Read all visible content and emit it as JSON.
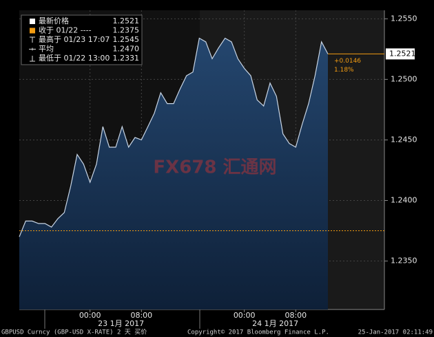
{
  "chart_data": {
    "type": "area",
    "series": [
      {
        "name": "GBPUSD",
        "color": "#c9d6e6",
        "x": [
          "01/22 13:00",
          "01/22 14:00",
          "01/22 15:00",
          "01/22 16:00",
          "01/22 17:00",
          "01/22 18:00",
          "01/22 19:00",
          "01/22 20:00",
          "01/22 21:00",
          "01/22 22:00",
          "01/22 23:00",
          "01/23 00:00",
          "01/23 01:00",
          "01/23 02:00",
          "01/23 03:00",
          "01/23 04:00",
          "01/23 05:00",
          "01/23 06:00",
          "01/23 07:00",
          "01/23 08:00",
          "01/23 09:00",
          "01/23 10:00",
          "01/23 11:00",
          "01/23 12:00",
          "01/23 13:00",
          "01/23 14:00",
          "01/23 15:00",
          "01/23 16:00",
          "01/23 17:00",
          "01/23 18:00",
          "01/23 19:00",
          "01/23 20:00",
          "01/23 21:00",
          "01/23 22:00",
          "01/23 23:00",
          "01/24 00:00",
          "01/24 01:00",
          "01/24 02:00",
          "01/24 03:00",
          "01/24 04:00",
          "01/24 05:00",
          "01/24 06:00",
          "01/24 07:00",
          "01/24 08:00",
          "01/24 09:00",
          "01/24 10:00",
          "01/24 11:00",
          "01/24 12:00",
          "01/24 13:00"
        ],
        "values": [
          1.237,
          1.2383,
          1.2383,
          1.2381,
          1.2381,
          1.2378,
          1.2385,
          1.239,
          1.2412,
          1.2438,
          1.243,
          1.2415,
          1.243,
          1.2461,
          1.2444,
          1.2444,
          1.2461,
          1.2444,
          1.2452,
          1.245,
          1.2461,
          1.2472,
          1.2489,
          1.248,
          1.248,
          1.2492,
          1.2503,
          1.2506,
          1.2534,
          1.2531,
          1.2517,
          1.2526,
          1.2534,
          1.2531,
          1.2517,
          1.2509,
          1.2503,
          1.2483,
          1.2478,
          1.2497,
          1.2486,
          1.2455,
          1.2447,
          1.2444,
          1.2463,
          1.248,
          1.2503,
          1.2531,
          1.2521
        ]
      }
    ],
    "ylim": [
      1.231,
      1.2557
    ],
    "yticks": [
      {
        "value": 1.235,
        "label": "1.2350"
      },
      {
        "value": 1.24,
        "label": "1.2400"
      },
      {
        "value": 1.245,
        "label": "1.2450"
      },
      {
        "value": 1.25,
        "label": "1.2500"
      },
      {
        "value": 1.255,
        "label": "1.2550"
      }
    ],
    "xticks": [
      {
        "value": "01/23 00:00",
        "label": "00:00"
      },
      {
        "value": "01/23 08:00",
        "label": "08:00"
      },
      {
        "value": "01/24 00:00",
        "label": "00:00"
      },
      {
        "value": "01/24 08:00",
        "label": "08:00"
      }
    ],
    "day_labels": [
      {
        "value": "01/23 00:00",
        "label": "23 1月 2017"
      },
      {
        "value": "01/24 00:00",
        "label": "24 1月 2017"
      }
    ],
    "grid": true,
    "prev_close": 1.2375,
    "prev_close_color": "#f39c12",
    "change": {
      "value": 0.0146,
      "label": "+0.0146"
    },
    "change_pct": {
      "value": 1.18,
      "label": "1.18%"
    },
    "legend": [
      {
        "label": "最新价格",
        "value": "1.2521"
      },
      {
        "label": "收于 01/22 ----",
        "value": "1.2375"
      },
      {
        "label": "最高于 01/23 17:07",
        "value": "1.2545"
      },
      {
        "label": "平均",
        "value": "1.2470"
      },
      {
        "label": "最低于 01/22 13:00",
        "value": "1.2331"
      }
    ],
    "watermark": "FX678 汇通网",
    "footer": [
      "GBPUSD Curncy (GBP-USD X-RATE) 2 天  买价",
      "Copyright© 2017 Bloomberg Finance L.P.",
      "25-Jan-2017 02:11:49"
    ]
  }
}
